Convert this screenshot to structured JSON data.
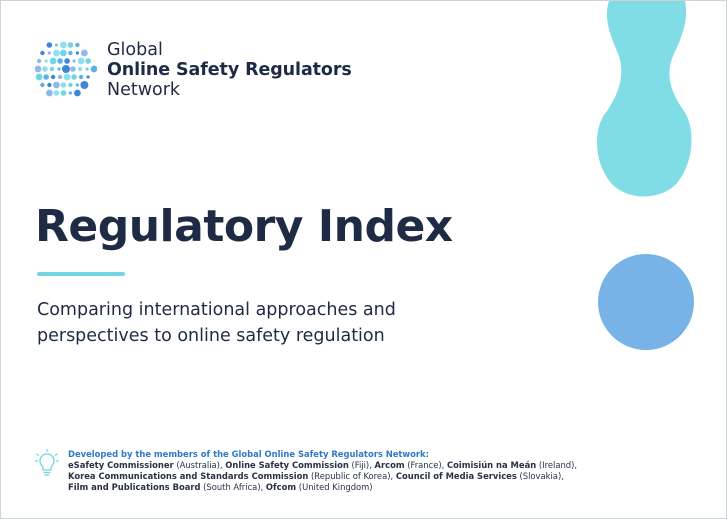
{
  "logo": {
    "line1": "Global",
    "line2": "Online Safety Regulators",
    "line3": "Network",
    "icon": "globe-dots-icon"
  },
  "title": "Regulatory Index",
  "subtitle": "Comparing international approaches and perspectives to online safety regulation",
  "colors": {
    "navy": "#1f2b44",
    "accent_teal": "#6fd6e4",
    "blob_teal": "#80dde6",
    "circle_blue": "#77b3e6",
    "credits_blue": "#2f79c9"
  },
  "credits": {
    "heading": "Developed by the members of the Global Online Safety Regulators Network:",
    "members": [
      {
        "name": "eSafety Commissioner",
        "country": " (Australia), "
      },
      {
        "name": "Online Safety Commission",
        "country": " (Fiji), "
      },
      {
        "name": "Arcom",
        "country": " (France), "
      },
      {
        "name": "Coimisiún na Meán",
        "country": " (Ireland),"
      },
      {
        "name": "Korea Communications and Standards Commission",
        "country": " (Republic of Korea), "
      },
      {
        "name": "Council of Media Services",
        "country": " (Slovakia),"
      },
      {
        "name": "Film and Publications Board",
        "country": " (South Africa), "
      },
      {
        "name": "Ofcom",
        "country": " (United Kingdom)"
      }
    ],
    "icon": "lightbulb-icon"
  }
}
